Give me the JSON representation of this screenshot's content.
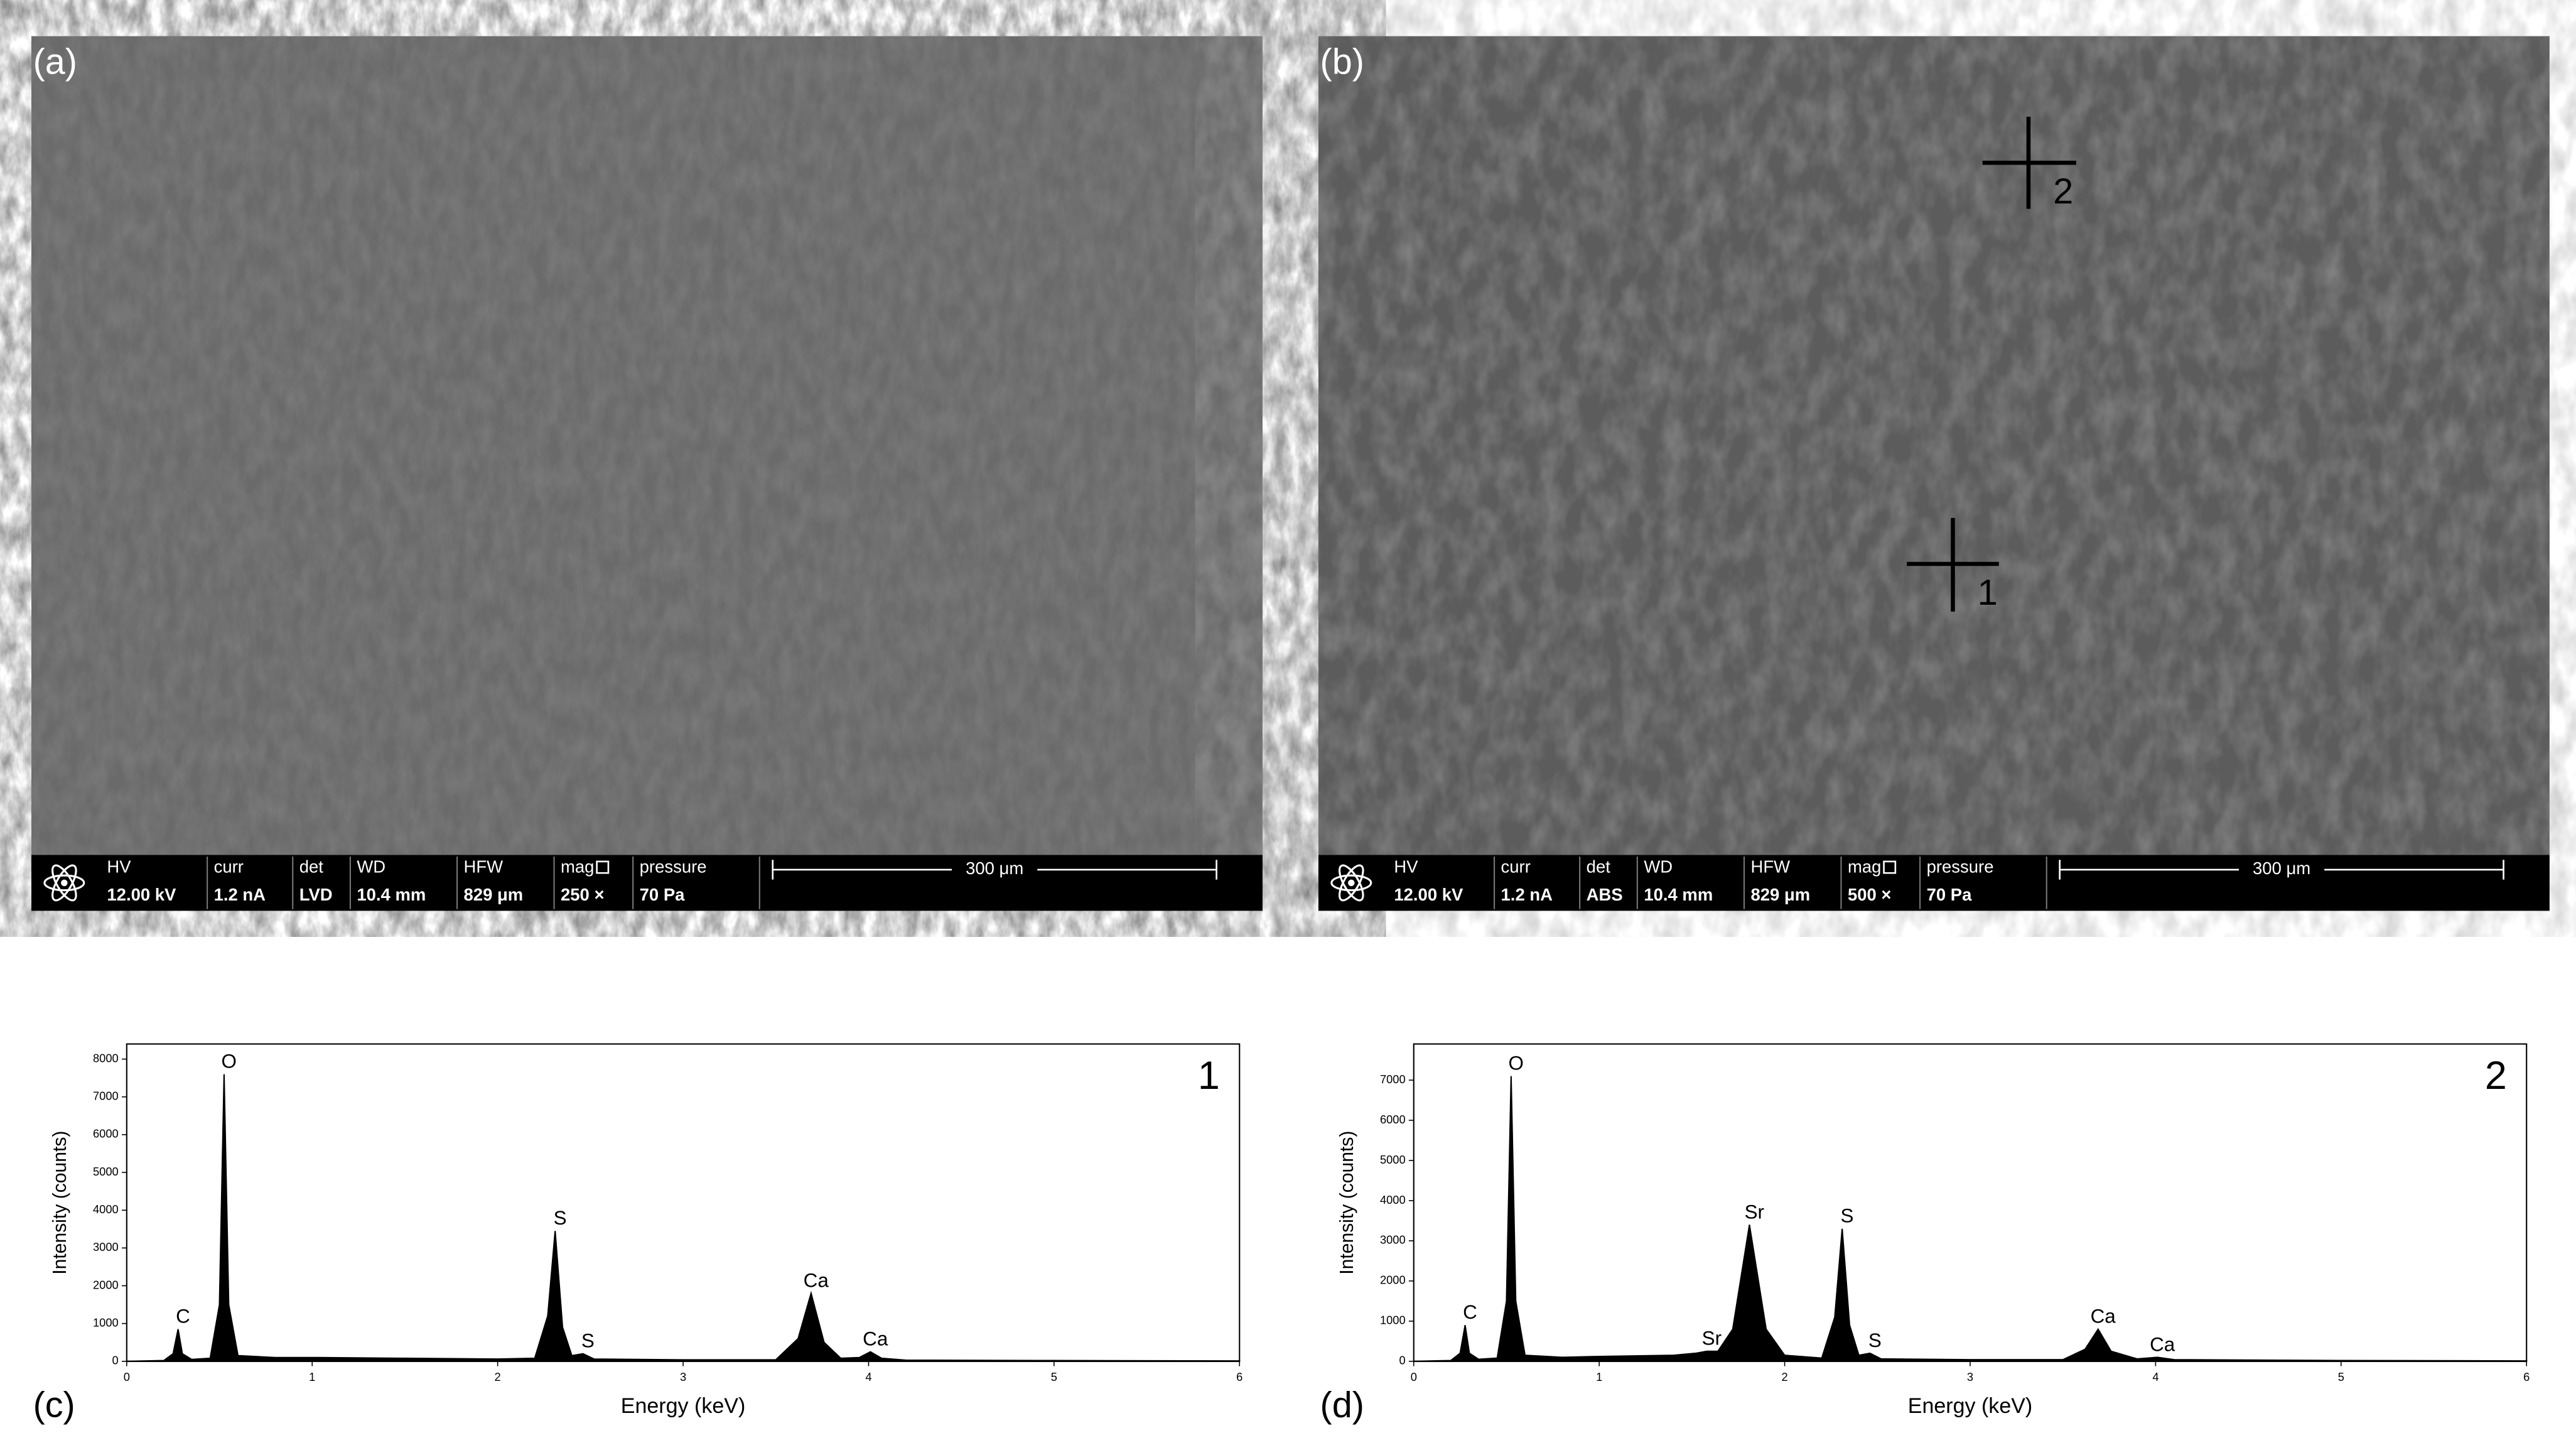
{
  "panels": [
    {
      "label": "(a)",
      "fields": [
        {
          "name": "HV",
          "value": "12.00 kV"
        },
        {
          "name": "curr",
          "value": "1.2 nA"
        },
        {
          "name": "det",
          "value": "LVD"
        },
        {
          "name": "WD",
          "value": "10.4 mm"
        },
        {
          "name": "HFW",
          "value": "829 μm"
        },
        {
          "name": "mag",
          "value": "250 ×"
        },
        {
          "name": "pressure",
          "value": "70 Pa"
        }
      ],
      "scale": "300 μm"
    },
    {
      "label": "(b)",
      "fields": [
        {
          "name": "HV",
          "value": "12.00 kV"
        },
        {
          "name": "curr",
          "value": "1.2 nA"
        },
        {
          "name": "det",
          "value": "ABS"
        },
        {
          "name": "WD",
          "value": "10.4 mm"
        },
        {
          "name": "HFW",
          "value": "829 μm"
        },
        {
          "name": "mag",
          "value": "500 ×"
        },
        {
          "name": "pressure",
          "value": "70 Pa"
        }
      ],
      "scale": "300 μm",
      "markers": [
        "1",
        "2"
      ]
    }
  ],
  "chart_data": [
    {
      "type": "area",
      "panel_label": "(c)",
      "number": "1",
      "x_label": "Energy (keV)",
      "y_label": "Intensity (counts)",
      "color": "#000000",
      "xlim": [
        0,
        6
      ],
      "xticks": [
        0,
        1,
        2,
        3,
        4,
        5,
        6
      ],
      "ylim": [
        0,
        8400
      ],
      "yticks": [
        0,
        1000,
        2000,
        3000,
        4000,
        5000,
        6000,
        7000,
        8000
      ],
      "x": [
        0,
        0.2,
        0.25,
        0.277,
        0.3,
        0.35,
        0.45,
        0.5,
        0.525,
        0.55,
        0.6,
        0.8,
        1.0,
        1.5,
        2.0,
        2.2,
        2.27,
        2.31,
        2.35,
        2.4,
        2.46,
        2.52,
        3.0,
        3.5,
        3.62,
        3.69,
        3.76,
        3.85,
        3.95,
        4.01,
        4.07,
        4.2,
        5,
        6
      ],
      "values": [
        0,
        20,
        200,
        850,
        200,
        50,
        80,
        1500,
        7600,
        1500,
        150,
        100,
        100,
        80,
        60,
        80,
        1200,
        3450,
        900,
        150,
        200,
        60,
        40,
        40,
        600,
        1800,
        500,
        80,
        100,
        250,
        80,
        30,
        20,
        10
      ],
      "peaks": [
        {
          "label": "C",
          "x": 0.277
        },
        {
          "label": "O",
          "x": 0.525
        },
        {
          "label": "S",
          "x": 2.31
        },
        {
          "label": "S",
          "x": 2.46
        },
        {
          "label": "Ca",
          "x": 3.69
        },
        {
          "label": "Ca",
          "x": 4.01
        }
      ]
    },
    {
      "type": "area",
      "panel_label": "(d)",
      "number": "2",
      "x_label": "Energy (keV)",
      "y_label": "Intensity (counts)",
      "color": "#000000",
      "xlim": [
        0,
        6
      ],
      "xticks": [
        0,
        1,
        2,
        3,
        4,
        5,
        6
      ],
      "ylim": [
        0,
        7900
      ],
      "yticks": [
        0,
        1000,
        2000,
        3000,
        4000,
        5000,
        6000,
        7000
      ],
      "x": [
        0,
        0.2,
        0.25,
        0.277,
        0.3,
        0.35,
        0.45,
        0.5,
        0.525,
        0.55,
        0.6,
        0.8,
        1.0,
        1.4,
        1.52,
        1.58,
        1.64,
        1.72,
        1.81,
        1.9,
        2.0,
        2.2,
        2.27,
        2.31,
        2.35,
        2.4,
        2.46,
        2.52,
        3.0,
        3.5,
        3.62,
        3.69,
        3.76,
        3.9,
        4.01,
        4.1,
        5,
        6
      ],
      "values": [
        0,
        20,
        200,
        900,
        200,
        50,
        80,
        1500,
        7100,
        1500,
        150,
        100,
        120,
        150,
        200,
        250,
        250,
        800,
        3400,
        800,
        150,
        80,
        1100,
        3300,
        900,
        150,
        200,
        60,
        40,
        40,
        300,
        800,
        250,
        60,
        100,
        40,
        20,
        10
      ],
      "peaks": [
        {
          "label": "C",
          "x": 0.277
        },
        {
          "label": "O",
          "x": 0.525
        },
        {
          "label": "Sr",
          "x": 1.58
        },
        {
          "label": "Sr",
          "x": 1.81
        },
        {
          "label": "S",
          "x": 2.31
        },
        {
          "label": "S",
          "x": 2.46
        },
        {
          "label": "Ca",
          "x": 3.69
        },
        {
          "label": "Ca",
          "x": 4.01
        }
      ]
    }
  ]
}
